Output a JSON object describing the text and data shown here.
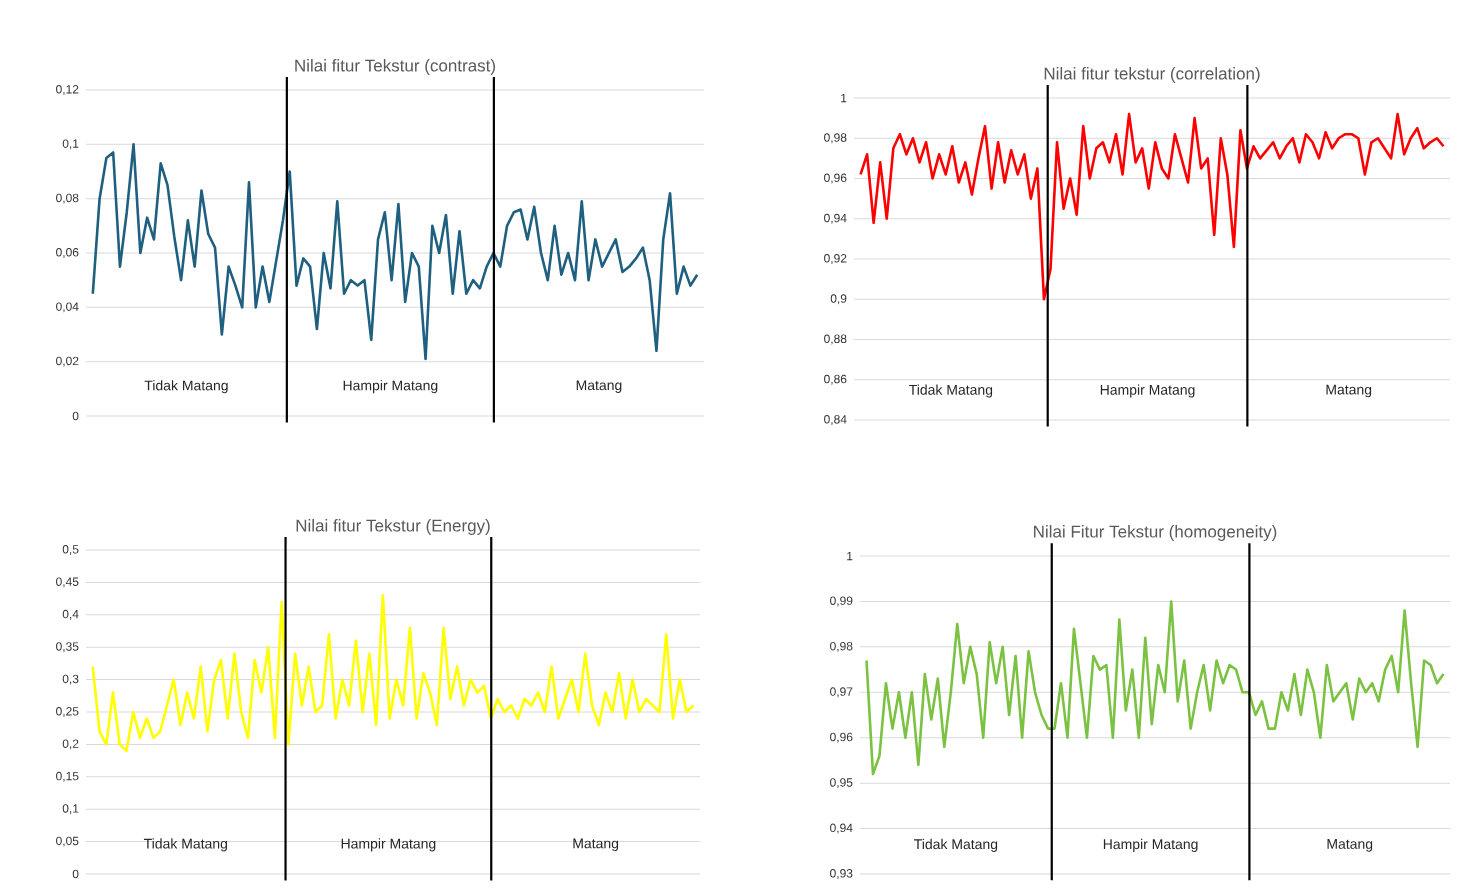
{
  "chart_data": [
    {
      "type": "line",
      "title": "Nilai fitur Tekstur (contrast)",
      "categories": [
        null,
        null,
        null,
        null,
        null,
        null,
        null,
        null,
        null,
        null,
        null,
        null,
        null,
        null,
        null,
        null,
        null,
        null,
        null,
        null,
        null,
        null,
        null,
        null,
        null,
        null,
        null,
        null,
        null,
        null,
        null,
        null,
        null,
        null,
        null,
        null,
        null,
        null,
        null,
        null,
        null,
        null,
        null,
        null,
        null,
        null,
        null,
        null,
        null,
        null,
        null,
        null,
        null,
        null,
        null,
        null,
        null,
        null,
        null,
        null,
        null,
        null,
        null,
        null,
        null,
        null,
        null,
        null,
        null,
        null,
        null,
        null,
        null,
        null,
        null,
        null,
        null,
        null,
        null,
        null,
        null,
        null,
        null,
        null,
        null,
        null,
        null,
        null,
        null,
        null
      ],
      "series": [
        {
          "color": "#1f5f7f",
          "values": [
            0.045,
            0.08,
            0.095,
            0.097,
            0.055,
            0.075,
            0.1,
            0.06,
            0.073,
            0.065,
            0.093,
            0.085,
            0.066,
            0.05,
            0.072,
            0.055,
            0.083,
            0.067,
            0.062,
            0.03,
            0.055,
            0.048,
            0.04,
            0.086,
            0.04,
            0.055,
            0.042,
            0.057,
            0.072,
            0.09,
            0.048,
            0.058,
            0.055,
            0.032,
            0.06,
            0.047,
            0.079,
            0.045,
            0.05,
            0.048,
            0.05,
            0.028,
            0.065,
            0.075,
            0.05,
            0.078,
            0.042,
            0.06,
            0.055,
            0.021,
            0.07,
            0.06,
            0.074,
            0.045,
            0.068,
            0.045,
            0.05,
            0.047,
            0.055,
            0.06,
            0.055,
            0.07,
            0.075,
            0.076,
            0.065,
            0.077,
            0.06,
            0.05,
            0.07,
            0.052,
            0.06,
            0.05,
            0.079,
            0.05,
            0.065,
            0.055,
            0.06,
            0.065,
            0.053,
            0.055,
            0.058,
            0.062,
            0.05,
            0.024,
            0.065,
            0.082,
            0.045,
            0.055,
            0.048,
            0.052
          ]
        }
      ],
      "ylim": [
        0,
        0.12
      ],
      "yticks": [
        {
          "value": 0,
          "label": "0"
        },
        {
          "value": 0.02,
          "label": "0,02"
        },
        {
          "value": 0.04,
          "label": "0,04"
        },
        {
          "value": 0.06,
          "label": "0,06"
        },
        {
          "value": 0.08,
          "label": "0,08"
        },
        {
          "value": 0.1,
          "label": "0,1"
        },
        {
          "value": 0.12,
          "label": "0,12"
        }
      ],
      "grid": "y",
      "tick_labels": "y",
      "line_style": "solid",
      "annotations": [
        "Tidak Matang",
        "Hampir Matang",
        "Matang"
      ]
    },
    {
      "type": "line",
      "title": "Nilai fitur tekstur (correlation)",
      "categories": [
        null,
        null,
        null,
        null,
        null,
        null,
        null,
        null,
        null,
        null,
        null,
        null,
        null,
        null,
        null,
        null,
        null,
        null,
        null,
        null,
        null,
        null,
        null,
        null,
        null,
        null,
        null,
        null,
        null,
        null,
        null,
        null,
        null,
        null,
        null,
        null,
        null,
        null,
        null,
        null,
        null,
        null,
        null,
        null,
        null,
        null,
        null,
        null,
        null,
        null,
        null,
        null,
        null,
        null,
        null,
        null,
        null,
        null,
        null,
        null,
        null,
        null,
        null,
        null,
        null,
        null,
        null,
        null,
        null,
        null,
        null,
        null,
        null,
        null,
        null,
        null,
        null,
        null,
        null,
        null,
        null,
        null,
        null,
        null,
        null,
        null,
        null,
        null,
        null,
        null
      ],
      "series": [
        {
          "color": "#ff0000",
          "values": [
            0.962,
            0.972,
            0.938,
            0.968,
            0.94,
            0.975,
            0.982,
            0.972,
            0.98,
            0.968,
            0.978,
            0.96,
            0.972,
            0.962,
            0.976,
            0.958,
            0.968,
            0.952,
            0.97,
            0.986,
            0.955,
            0.978,
            0.958,
            0.974,
            0.962,
            0.972,
            0.95,
            0.965,
            0.9,
            0.915,
            0.978,
            0.945,
            0.96,
            0.942,
            0.986,
            0.96,
            0.975,
            0.978,
            0.968,
            0.982,
            0.962,
            0.992,
            0.968,
            0.975,
            0.955,
            0.978,
            0.965,
            0.96,
            0.982,
            0.97,
            0.958,
            0.99,
            0.965,
            0.97,
            0.932,
            0.98,
            0.962,
            0.926,
            0.984,
            0.965,
            0.976,
            0.97,
            0.974,
            0.978,
            0.97,
            0.976,
            0.98,
            0.968,
            0.982,
            0.978,
            0.97,
            0.983,
            0.975,
            0.98,
            0.982,
            0.982,
            0.98,
            0.962,
            0.978,
            0.98,
            0.975,
            0.97,
            0.992,
            0.972,
            0.98,
            0.985,
            0.975,
            0.978,
            0.98,
            0.976
          ]
        }
      ],
      "ylim": [
        0.84,
        1
      ],
      "yticks": [
        {
          "value": 0.84,
          "label": "0,84"
        },
        {
          "value": 0.86,
          "label": "0,86"
        },
        {
          "value": 0.88,
          "label": "0,88"
        },
        {
          "value": 0.9,
          "label": "0,9"
        },
        {
          "value": 0.92,
          "label": "0,92"
        },
        {
          "value": 0.94,
          "label": "0,94"
        },
        {
          "value": 0.96,
          "label": "0,96"
        },
        {
          "value": 0.98,
          "label": "0,98"
        },
        {
          "value": 1,
          "label": "1"
        }
      ],
      "grid": "y",
      "tick_labels": "y",
      "line_style": "solid",
      "annotations": [
        "Tidak Matang",
        "Hampir Matang",
        "Matang"
      ]
    },
    {
      "type": "line",
      "title": "Nilai fitur Tekstur (Energy)",
      "categories": [
        null,
        null,
        null,
        null,
        null,
        null,
        null,
        null,
        null,
        null,
        null,
        null,
        null,
        null,
        null,
        null,
        null,
        null,
        null,
        null,
        null,
        null,
        null,
        null,
        null,
        null,
        null,
        null,
        null,
        null,
        null,
        null,
        null,
        null,
        null,
        null,
        null,
        null,
        null,
        null,
        null,
        null,
        null,
        null,
        null,
        null,
        null,
        null,
        null,
        null,
        null,
        null,
        null,
        null,
        null,
        null,
        null,
        null,
        null,
        null,
        null,
        null,
        null,
        null,
        null,
        null,
        null,
        null,
        null,
        null,
        null,
        null,
        null,
        null,
        null,
        null,
        null,
        null,
        null,
        null,
        null,
        null,
        null,
        null,
        null,
        null,
        null,
        null,
        null,
        null
      ],
      "series": [
        {
          "color": "#ffff00",
          "values": [
            0.32,
            0.22,
            0.2,
            0.28,
            0.2,
            0.19,
            0.25,
            0.21,
            0.24,
            0.21,
            0.22,
            0.26,
            0.3,
            0.23,
            0.28,
            0.24,
            0.32,
            0.22,
            0.3,
            0.33,
            0.24,
            0.34,
            0.25,
            0.21,
            0.33,
            0.28,
            0.35,
            0.21,
            0.42,
            0.2,
            0.34,
            0.26,
            0.32,
            0.25,
            0.26,
            0.37,
            0.24,
            0.3,
            0.26,
            0.36,
            0.25,
            0.34,
            0.23,
            0.43,
            0.24,
            0.3,
            0.26,
            0.38,
            0.24,
            0.31,
            0.28,
            0.23,
            0.38,
            0.27,
            0.32,
            0.26,
            0.3,
            0.28,
            0.29,
            0.24,
            0.27,
            0.25,
            0.26,
            0.24,
            0.27,
            0.26,
            0.28,
            0.25,
            0.32,
            0.24,
            0.27,
            0.3,
            0.25,
            0.34,
            0.26,
            0.23,
            0.28,
            0.25,
            0.31,
            0.24,
            0.3,
            0.25,
            0.27,
            0.26,
            0.25,
            0.37,
            0.24,
            0.3,
            0.25,
            0.26
          ]
        }
      ],
      "ylim": [
        0,
        0.5
      ],
      "yticks": [
        {
          "value": 0,
          "label": "0"
        },
        {
          "value": 0.05,
          "label": "0,05"
        },
        {
          "value": 0.1,
          "label": "0,1"
        },
        {
          "value": 0.15,
          "label": "0,15"
        },
        {
          "value": 0.2,
          "label": "0,2"
        },
        {
          "value": 0.25,
          "label": "0,25"
        },
        {
          "value": 0.3,
          "label": "0,3"
        },
        {
          "value": 0.35,
          "label": "0,35"
        },
        {
          "value": 0.4,
          "label": "0,4"
        },
        {
          "value": 0.45,
          "label": "0,45"
        },
        {
          "value": 0.5,
          "label": "0,5"
        }
      ],
      "grid": "y",
      "tick_labels": "y",
      "line_style": "solid",
      "annotations": [
        "Tidak Matang",
        "Hampir Matang",
        "Matang"
      ]
    },
    {
      "type": "line",
      "title": "Nilai Fitur Tekstur (homogeneity)",
      "categories": [
        null,
        null,
        null,
        null,
        null,
        null,
        null,
        null,
        null,
        null,
        null,
        null,
        null,
        null,
        null,
        null,
        null,
        null,
        null,
        null,
        null,
        null,
        null,
        null,
        null,
        null,
        null,
        null,
        null,
        null,
        null,
        null,
        null,
        null,
        null,
        null,
        null,
        null,
        null,
        null,
        null,
        null,
        null,
        null,
        null,
        null,
        null,
        null,
        null,
        null,
        null,
        null,
        null,
        null,
        null,
        null,
        null,
        null,
        null,
        null,
        null,
        null,
        null,
        null,
        null,
        null,
        null,
        null,
        null,
        null,
        null,
        null,
        null,
        null,
        null,
        null,
        null,
        null,
        null,
        null,
        null,
        null,
        null,
        null,
        null,
        null,
        null,
        null,
        null,
        null
      ],
      "series": [
        {
          "color": "#7cc242",
          "values": [
            0.977,
            0.952,
            0.956,
            0.972,
            0.962,
            0.97,
            0.96,
            0.97,
            0.954,
            0.974,
            0.964,
            0.973,
            0.958,
            0.97,
            0.985,
            0.972,
            0.98,
            0.974,
            0.96,
            0.981,
            0.972,
            0.98,
            0.965,
            0.978,
            0.96,
            0.979,
            0.97,
            0.965,
            0.962,
            0.962,
            0.972,
            0.96,
            0.984,
            0.972,
            0.96,
            0.978,
            0.975,
            0.976,
            0.96,
            0.986,
            0.966,
            0.975,
            0.96,
            0.982,
            0.963,
            0.976,
            0.97,
            0.99,
            0.968,
            0.977,
            0.962,
            0.97,
            0.976,
            0.966,
            0.977,
            0.972,
            0.976,
            0.975,
            0.97,
            0.97,
            0.965,
            0.968,
            0.962,
            0.962,
            0.97,
            0.966,
            0.974,
            0.965,
            0.975,
            0.97,
            0.96,
            0.976,
            0.968,
            0.97,
            0.972,
            0.964,
            0.973,
            0.97,
            0.972,
            0.968,
            0.975,
            0.978,
            0.97,
            0.988,
            0.972,
            0.958,
            0.977,
            0.976,
            0.972,
            0.974
          ]
        }
      ],
      "ylim": [
        0.93,
        1
      ],
      "yticks": [
        {
          "value": 0.93,
          "label": "0,93"
        },
        {
          "value": 0.94,
          "label": "0,94"
        },
        {
          "value": 0.95,
          "label": "0,95"
        },
        {
          "value": 0.96,
          "label": "0,96"
        },
        {
          "value": 0.97,
          "label": "0,97"
        },
        {
          "value": 0.98,
          "label": "0,98"
        },
        {
          "value": 0.99,
          "label": "0,99"
        },
        {
          "value": 1,
          "label": "1"
        }
      ],
      "grid": "y",
      "tick_labels": "y",
      "line_style": "solid",
      "annotations": [
        "Tidak Matang",
        "Hampir Matang",
        "Matang"
      ]
    }
  ]
}
